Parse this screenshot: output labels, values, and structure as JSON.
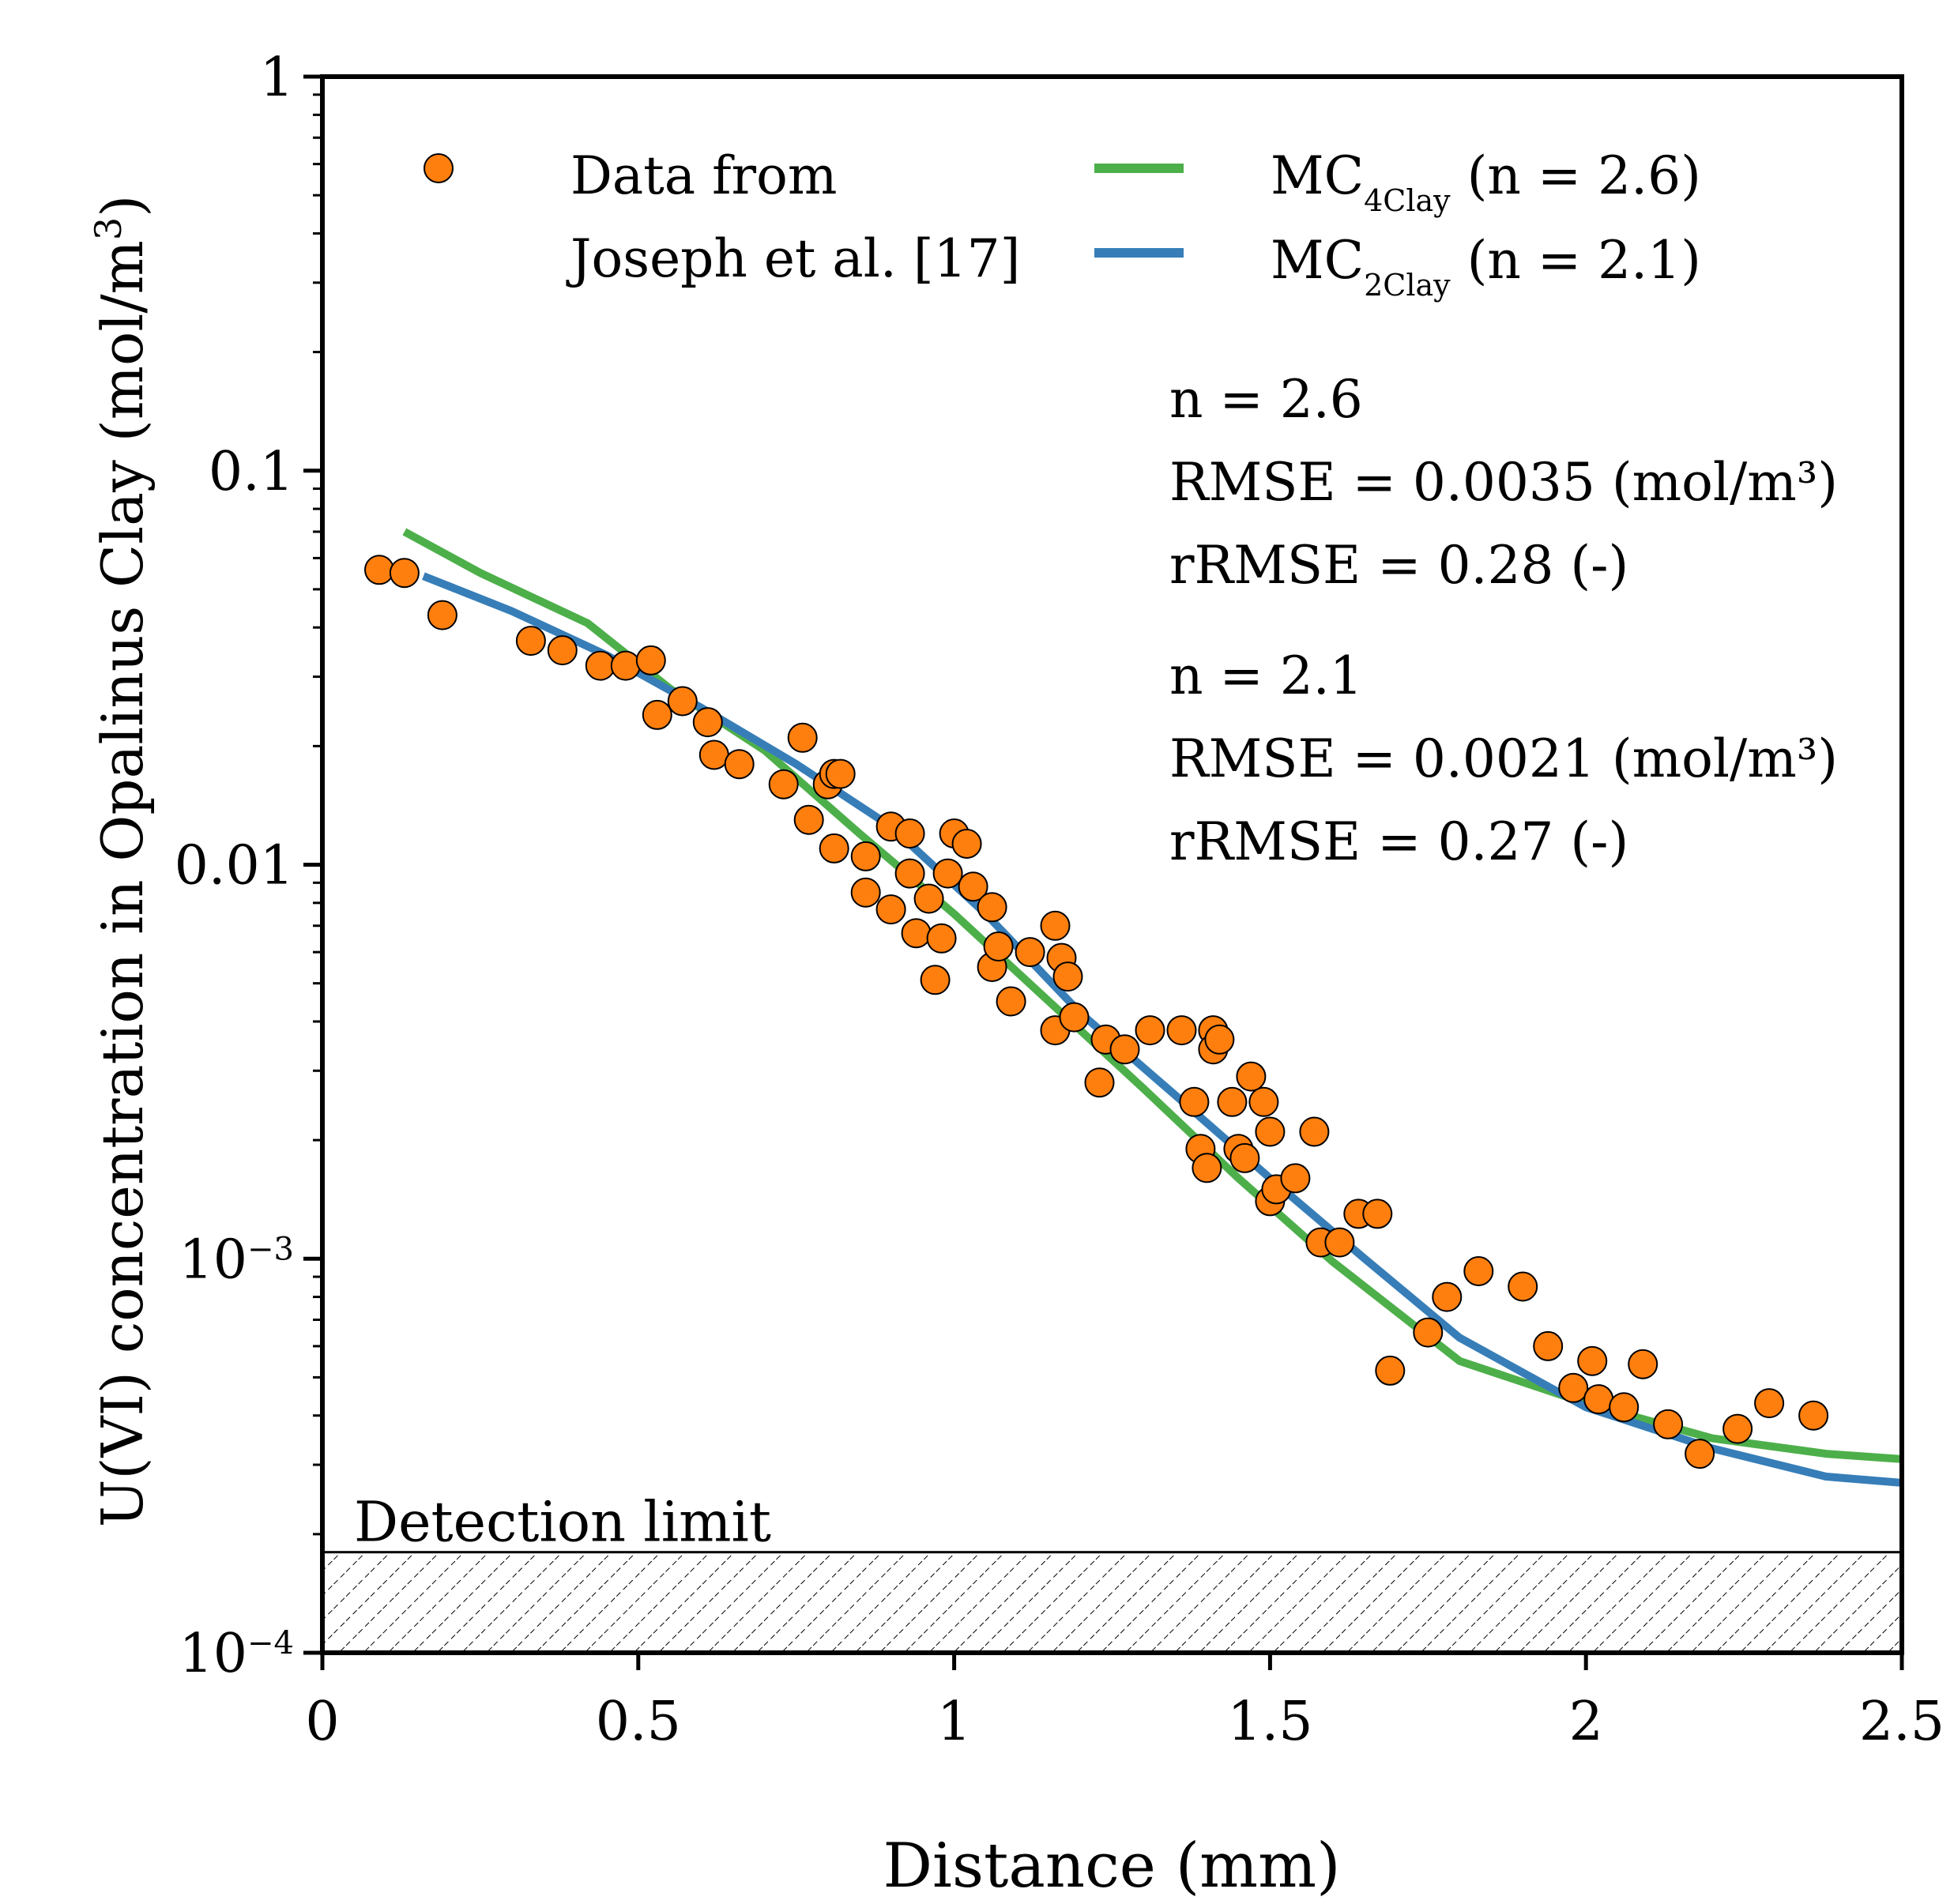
{
  "chart_data": {
    "type": "scatter",
    "title": "",
    "xlabel": "Distance (mm)",
    "ylabel": "U(VI) concentration in Opalinus Clay (mol/m",
    "ylabel_sup": "3",
    "ylabel_close": ")",
    "xlim": [
      0,
      2.5
    ],
    "ylim": [
      0.0001,
      1
    ],
    "yscale": "log",
    "x_ticks": [
      {
        "value": 0,
        "label": "0"
      },
      {
        "value": 0.5,
        "label": "0.5"
      },
      {
        "value": 1,
        "label": "1"
      },
      {
        "value": 1.5,
        "label": "1.5"
      },
      {
        "value": 2,
        "label": "2"
      },
      {
        "value": 2.5,
        "label": "2.5"
      }
    ],
    "y_ticks": [
      {
        "value": 1,
        "label": "1",
        "sup": ""
      },
      {
        "value": 0.1,
        "label": "0.1",
        "sup": ""
      },
      {
        "value": 0.01,
        "label": "0.01",
        "sup": ""
      },
      {
        "value": 0.001,
        "label": "10",
        "sup": "−3"
      },
      {
        "value": 0.0001,
        "label": "10",
        "sup": "−4"
      }
    ],
    "series": [
      {
        "name": "Data from Joseph et al. [17]",
        "legend_line1": "Data from",
        "legend_line2": "Joseph et al. [17]",
        "kind": "scatter",
        "color": "#FF7F0E",
        "points": [
          [
            0.09,
            0.056
          ],
          [
            0.13,
            0.055
          ],
          [
            0.19,
            0.043
          ],
          [
            0.33,
            0.037
          ],
          [
            0.38,
            0.035
          ],
          [
            0.44,
            0.032
          ],
          [
            0.48,
            0.032
          ],
          [
            0.52,
            0.033
          ],
          [
            0.53,
            0.024
          ],
          [
            0.57,
            0.026
          ],
          [
            0.61,
            0.023
          ],
          [
            0.62,
            0.019
          ],
          [
            0.66,
            0.018
          ],
          [
            0.73,
            0.016
          ],
          [
            0.76,
            0.021
          ],
          [
            0.77,
            0.013
          ],
          [
            0.8,
            0.016
          ],
          [
            0.81,
            0.017
          ],
          [
            0.82,
            0.017
          ],
          [
            0.81,
            0.011
          ],
          [
            0.86,
            0.0105
          ],
          [
            0.86,
            0.0085
          ],
          [
            0.9,
            0.0077
          ],
          [
            0.9,
            0.0125
          ],
          [
            0.93,
            0.0095
          ],
          [
            0.93,
            0.012
          ],
          [
            0.94,
            0.0067
          ],
          [
            0.96,
            0.0082
          ],
          [
            0.97,
            0.0051
          ],
          [
            0.98,
            0.0065
          ],
          [
            0.99,
            0.0095
          ],
          [
            1.0,
            0.012
          ],
          [
            1.02,
            0.0113
          ],
          [
            1.03,
            0.0088
          ],
          [
            1.06,
            0.0078
          ],
          [
            1.06,
            0.0055
          ],
          [
            1.07,
            0.0062
          ],
          [
            1.09,
            0.0045
          ],
          [
            1.12,
            0.006
          ],
          [
            1.16,
            0.007
          ],
          [
            1.16,
            0.0038
          ],
          [
            1.17,
            0.0058
          ],
          [
            1.18,
            0.0052
          ],
          [
            1.19,
            0.0041
          ],
          [
            1.23,
            0.0028
          ],
          [
            1.24,
            0.0036
          ],
          [
            1.27,
            0.0034
          ],
          [
            1.31,
            0.0038
          ],
          [
            1.36,
            0.0038
          ],
          [
            1.38,
            0.0025
          ],
          [
            1.39,
            0.0019
          ],
          [
            1.4,
            0.0017
          ],
          [
            1.41,
            0.0038
          ],
          [
            1.41,
            0.0034
          ],
          [
            1.42,
            0.0036
          ],
          [
            1.44,
            0.0025
          ],
          [
            1.45,
            0.0019
          ],
          [
            1.46,
            0.0018
          ],
          [
            1.47,
            0.0029
          ],
          [
            1.49,
            0.0025
          ],
          [
            1.5,
            0.0021
          ],
          [
            1.5,
            0.0014
          ],
          [
            1.51,
            0.0015
          ],
          [
            1.54,
            0.0016
          ],
          [
            1.57,
            0.0021
          ],
          [
            1.58,
            0.0011
          ],
          [
            1.61,
            0.0011
          ],
          [
            1.64,
            0.0013
          ],
          [
            1.67,
            0.0013
          ],
          [
            1.69,
            0.00052
          ],
          [
            1.75,
            0.00065
          ],
          [
            1.78,
            0.0008
          ],
          [
            1.83,
            0.00093
          ],
          [
            1.9,
            0.00085
          ],
          [
            1.94,
            0.0006
          ],
          [
            1.98,
            0.00047
          ],
          [
            2.01,
            0.00055
          ],
          [
            2.02,
            0.00044
          ],
          [
            2.06,
            0.00042
          ],
          [
            2.09,
            0.00054
          ],
          [
            2.13,
            0.00038
          ],
          [
            2.18,
            0.00032
          ],
          [
            2.24,
            0.00037
          ],
          [
            2.29,
            0.00043
          ],
          [
            2.36,
            0.0004
          ]
        ]
      },
      {
        "name": "MC4Clay (n = 2.6)",
        "label_main": "MC",
        "label_sub": "4Clay",
        "label_suffix": " (n = 2.6)",
        "kind": "line",
        "color": "#4DAF4A",
        "x": [
          0.13,
          0.25,
          0.42,
          0.55,
          0.7,
          0.85,
          1.0,
          1.15,
          1.3,
          1.45,
          1.6,
          1.8,
          2.0,
          2.2,
          2.38,
          2.5
        ],
        "y": [
          0.07,
          0.055,
          0.041,
          0.028,
          0.0195,
          0.012,
          0.0075,
          0.0045,
          0.0027,
          0.0016,
          0.00098,
          0.00055,
          0.00043,
          0.00035,
          0.00032,
          0.00031
        ]
      },
      {
        "name": "MC2Clay (n = 2.1)",
        "label_main": "MC",
        "label_sub": "2Clay",
        "label_suffix": " (n = 2.1)",
        "kind": "line",
        "color": "#377EB8",
        "x": [
          0.16,
          0.3,
          0.45,
          0.6,
          0.75,
          0.9,
          1.05,
          1.2,
          1.35,
          1.5,
          1.65,
          1.8,
          2.0,
          2.2,
          2.38,
          2.5
        ],
        "y": [
          0.054,
          0.044,
          0.034,
          0.025,
          0.018,
          0.0125,
          0.0075,
          0.0042,
          0.0026,
          0.0016,
          0.001,
          0.00063,
          0.00042,
          0.00033,
          0.00028,
          0.00027
        ]
      }
    ],
    "annotations": [
      {
        "id": "fit1_n",
        "text": "n = 2.6"
      },
      {
        "id": "fit1_rmse",
        "text": "RMSE = 0.0035 (mol/m³)"
      },
      {
        "id": "fit1_rrmse",
        "text": "rRMSE = 0.28 (-)"
      },
      {
        "id": "fit2_n",
        "text": "n = 2.1"
      },
      {
        "id": "fit2_rmse",
        "text": "RMSE = 0.0021 (mol/m³)"
      },
      {
        "id": "fit2_rrmse",
        "text": "rRMSE = 0.27  (-)"
      }
    ],
    "detection_limit": {
      "label": "Detection limit",
      "value": 0.00018
    },
    "legend_position": "top",
    "grid": false
  }
}
